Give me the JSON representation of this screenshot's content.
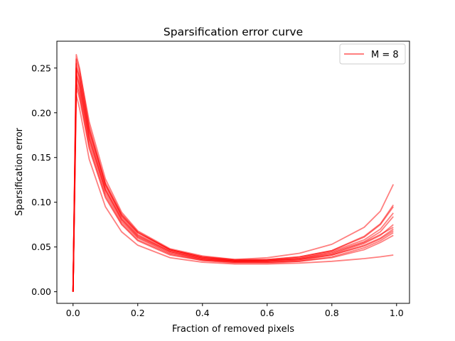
{
  "chart_data": {
    "type": "line",
    "title": "Sparsification error curve",
    "xlabel": "Fraction of removed pixels",
    "ylabel": "Sparsification error",
    "xlim": [
      -0.05,
      1.04
    ],
    "ylim": [
      -0.013,
      0.28
    ],
    "xticks": [
      0.0,
      0.2,
      0.4,
      0.6,
      0.8,
      1.0
    ],
    "xtick_labels": [
      "0.0",
      "0.2",
      "0.4",
      "0.6",
      "0.8",
      "1.0"
    ],
    "yticks": [
      0.0,
      0.05,
      0.1,
      0.15,
      0.2,
      0.25
    ],
    "ytick_labels": [
      "0.00",
      "0.05",
      "0.10",
      "0.15",
      "0.20",
      "0.25"
    ],
    "grid": false,
    "legend": {
      "position": "top-right",
      "entries": [
        "M = 8"
      ]
    },
    "line_color": "#ff0000",
    "line_alpha": 0.5,
    "x": [
      0.0,
      0.01,
      0.02,
      0.05,
      0.1,
      0.15,
      0.2,
      0.3,
      0.4,
      0.5,
      0.6,
      0.7,
      0.8,
      0.9,
      0.95,
      0.99
    ],
    "series": [
      {
        "name": "M = 8",
        "values": [
          0.0,
          0.265,
          0.25,
          0.185,
          0.12,
          0.085,
          0.066,
          0.047,
          0.039,
          0.036,
          0.038,
          0.043,
          0.053,
          0.072,
          0.09,
          0.12
        ]
      },
      {
        "values": [
          0.0,
          0.26,
          0.248,
          0.19,
          0.126,
          0.089,
          0.068,
          0.048,
          0.04,
          0.036,
          0.036,
          0.039,
          0.046,
          0.062,
          0.076,
          0.097
        ]
      },
      {
        "values": [
          0.0,
          0.255,
          0.243,
          0.182,
          0.122,
          0.087,
          0.067,
          0.047,
          0.039,
          0.035,
          0.036,
          0.039,
          0.046,
          0.061,
          0.075,
          0.095
        ]
      },
      {
        "values": [
          0.0,
          0.25,
          0.238,
          0.178,
          0.118,
          0.084,
          0.064,
          0.046,
          0.038,
          0.035,
          0.035,
          0.038,
          0.045,
          0.058,
          0.07,
          0.088
        ]
      },
      {
        "values": [
          0.0,
          0.245,
          0.233,
          0.174,
          0.115,
          0.082,
          0.063,
          0.045,
          0.037,
          0.034,
          0.035,
          0.037,
          0.044,
          0.056,
          0.067,
          0.084
        ]
      },
      {
        "values": [
          0.0,
          0.24,
          0.228,
          0.17,
          0.113,
          0.08,
          0.061,
          0.044,
          0.036,
          0.034,
          0.034,
          0.036,
          0.042,
          0.054,
          0.063,
          0.075
        ]
      },
      {
        "values": [
          0.0,
          0.235,
          0.223,
          0.166,
          0.11,
          0.078,
          0.06,
          0.043,
          0.036,
          0.033,
          0.033,
          0.035,
          0.041,
          0.052,
          0.06,
          0.07
        ]
      },
      {
        "values": [
          0.0,
          0.232,
          0.22,
          0.162,
          0.107,
          0.076,
          0.058,
          0.042,
          0.035,
          0.033,
          0.033,
          0.034,
          0.039,
          0.049,
          0.057,
          0.066
        ]
      },
      {
        "values": [
          0.0,
          0.228,
          0.216,
          0.16,
          0.105,
          0.075,
          0.057,
          0.041,
          0.035,
          0.032,
          0.032,
          0.034,
          0.038,
          0.047,
          0.055,
          0.063
        ]
      },
      {
        "values": [
          0.0,
          0.22,
          0.205,
          0.148,
          0.095,
          0.067,
          0.052,
          0.038,
          0.033,
          0.031,
          0.031,
          0.032,
          0.034,
          0.037,
          0.039,
          0.041
        ]
      },
      {
        "values": [
          0.0,
          0.25,
          0.24,
          0.18,
          0.12,
          0.086,
          0.066,
          0.047,
          0.038,
          0.035,
          0.035,
          0.037,
          0.043,
          0.055,
          0.064,
          0.072
        ]
      },
      {
        "values": [
          0.0,
          0.242,
          0.231,
          0.172,
          0.114,
          0.081,
          0.062,
          0.045,
          0.037,
          0.034,
          0.034,
          0.036,
          0.041,
          0.051,
          0.059,
          0.068
        ]
      }
    ]
  }
}
